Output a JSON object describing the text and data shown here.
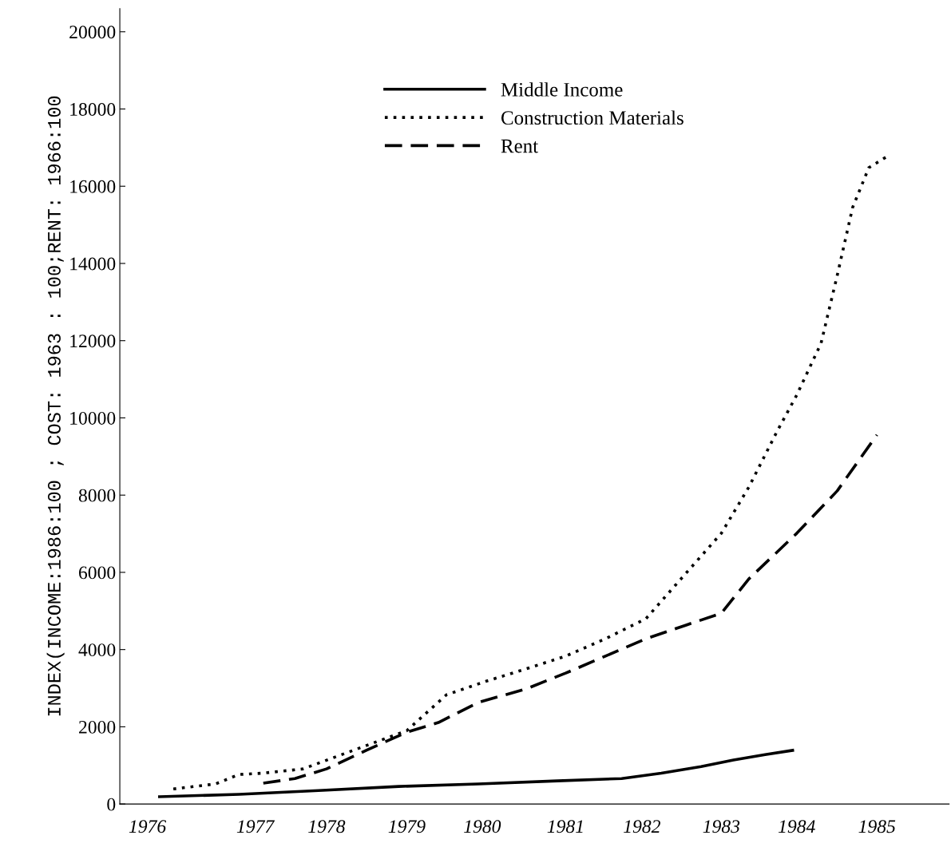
{
  "chart_data": {
    "type": "line",
    "ylabel": "INDEX(INCOME:1986:100 ; COST: 1963 : 100;RENT: 1966:100",
    "xlim": [
      1975.66,
      1985.89
    ],
    "ylim": [
      0,
      20600
    ],
    "xticks": [
      1976,
      {
        "value": 1977.33,
        "label": "1977"
      },
      {
        "value": 1978.21,
        "label": "1978"
      },
      {
        "value": 1979.2,
        "label": "1979"
      },
      {
        "value": 1980.13,
        "label": "1980"
      },
      {
        "value": 1981.16,
        "label": "1981"
      },
      {
        "value": 1982.1,
        "label": "1982"
      },
      {
        "value": 1983.08,
        "label": "1983"
      },
      {
        "value": 1984.01,
        "label": "1984"
      },
      1985
    ],
    "yticks": [
      0,
      2000,
      4000,
      6000,
      8000,
      10000,
      12000,
      14000,
      16000,
      18000,
      20000
    ],
    "grid": false,
    "legend": "top",
    "marker": "none",
    "series": [
      {
        "name": "Middle Income",
        "color": "#000000",
        "line_style": "solid",
        "x": [
          1976.15,
          1977.13,
          1978.11,
          1979.1,
          1980.08,
          1981.06,
          1981.85,
          1982.34,
          1982.83,
          1983.23,
          1983.62,
          1983.96
        ],
        "values": [
          190,
          250,
          350,
          455,
          520,
          600,
          660,
          800,
          970,
          1140,
          1280,
          1390
        ]
      },
      {
        "name": "Construction Materials",
        "color": "#000000",
        "line_style": "dotted",
        "x": [
          1976.32,
          1976.84,
          1977.13,
          1977.43,
          1977.92,
          1979.2,
          1979.69,
          1980.18,
          1980.67,
          1981.16,
          1981.65,
          1982.15,
          1982.54,
          1983.08,
          1983.42,
          1983.77,
          1984.01,
          1984.31,
          1984.51,
          1984.7,
          1984.9,
          1985.14
        ],
        "values": [
          390,
          520,
          765,
          800,
          910,
          1900,
          2830,
          3180,
          3500,
          3830,
          4280,
          4800,
          5730,
          7010,
          8210,
          9660,
          10590,
          11930,
          13690,
          15450,
          16480,
          16790
        ]
      },
      {
        "name": "Rent",
        "color": "#000000",
        "line_style": "dashed",
        "x": [
          1977.43,
          1977.82,
          1978.21,
          1978.7,
          1979.2,
          1979.59,
          1980.08,
          1980.67,
          1981.16,
          1981.65,
          1982.15,
          1982.64,
          1983.08,
          1983.42,
          1984.01,
          1984.51,
          1985.0
        ],
        "values": [
          540,
          660,
          910,
          1390,
          1860,
          2110,
          2630,
          2980,
          3390,
          3830,
          4280,
          4630,
          4940,
          5830,
          7010,
          8110,
          9560
        ]
      }
    ]
  }
}
